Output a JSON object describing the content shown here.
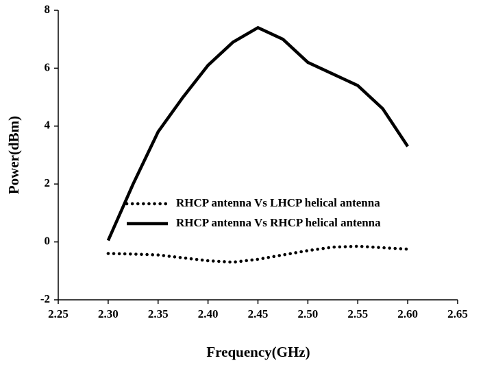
{
  "chart_data": {
    "type": "line",
    "x_label": "Frequency(GHz)",
    "y_label": "Power(dBm)",
    "x": [
      2.3,
      2.325,
      2.35,
      2.375,
      2.4,
      2.425,
      2.45,
      2.475,
      2.5,
      2.525,
      2.55,
      2.575,
      2.6
    ],
    "series": [
      {
        "name": "RHCP antenna Vs LHCP helical antenna",
        "color": "#000000",
        "dash": "dotted",
        "values": [
          -0.4,
          -0.42,
          -0.45,
          -0.55,
          -0.65,
          -0.7,
          -0.6,
          -0.45,
          -0.3,
          -0.18,
          -0.15,
          -0.2,
          -0.25
        ]
      },
      {
        "name": "RHCP antenna Vs RHCP helical antenna",
        "color": "#000000",
        "dash": "solid",
        "values": [
          0.05,
          2.0,
          3.8,
          5.0,
          6.1,
          6.9,
          7.4,
          7.0,
          6.2,
          5.8,
          5.4,
          4.6,
          3.3
        ]
      }
    ],
    "xlim": [
      2.25,
      2.65
    ],
    "xticks": [
      2.25,
      {
        "value": 2.3,
        "label": "2.30"
      },
      2.35,
      {
        "value": 2.4,
        "label": "2.40"
      },
      2.45,
      {
        "value": 2.5,
        "label": "2.50"
      },
      2.55,
      {
        "value": 2.6,
        "label": "2.60"
      },
      2.65
    ],
    "ylim": [
      -2,
      8
    ],
    "yticks": [
      -2,
      0,
      2,
      4,
      6,
      8
    ],
    "legend": "center",
    "grid": false
  }
}
